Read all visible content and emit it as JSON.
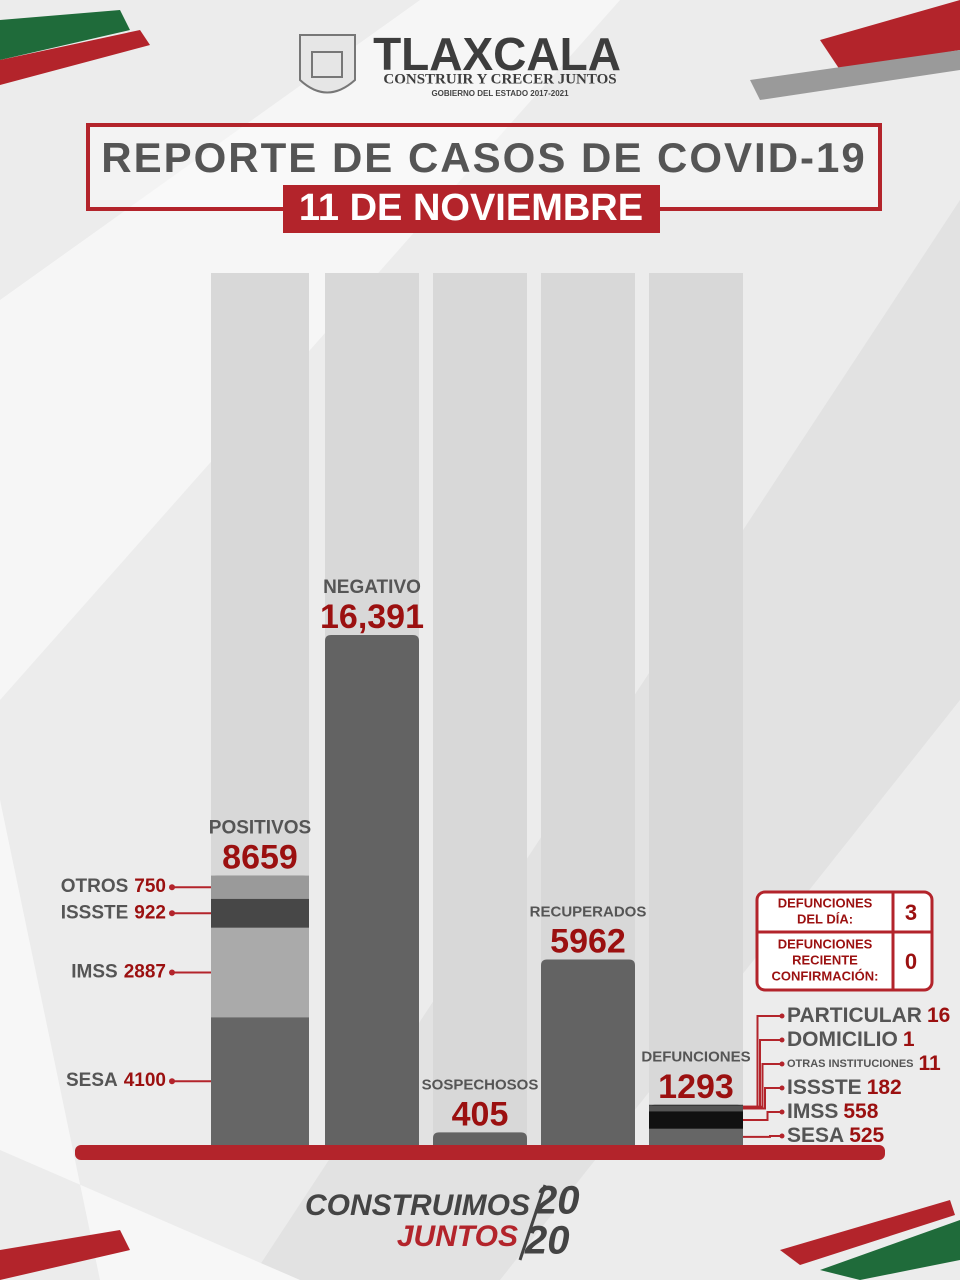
{
  "header": {
    "brand": "TLAXCALA",
    "slogan": "CONSTRUIR Y CRECER JUNTOS",
    "government": "GOBIERNO DEL ESTADO 2017-2021"
  },
  "chart_data": {
    "type": "bar",
    "title": "REPORTE DE CASOS DE COVID-19",
    "subtitle": "11 DE NOVIEMBRE",
    "categories": [
      "POSITIVOS",
      "NEGATIVO",
      "SOSPECHOSOS",
      "RECUPERADOS",
      "DEFUNCIONES"
    ],
    "values": [
      8659,
      16391,
      405,
      5962,
      1293
    ],
    "value_labels": [
      "8659",
      "16,391",
      "405",
      "5962",
      "1293"
    ],
    "color": "#636363",
    "track_color": "#d8d8d8",
    "segments": [
      [
        {
          "name": "SESA",
          "value": 4100,
          "color": "#666666"
        },
        {
          "name": "IMSS",
          "value": 2887,
          "color": "#aaaaaa"
        },
        {
          "name": "ISSSTE",
          "value": 922,
          "color": "#474747"
        },
        {
          "name": "OTROS",
          "value": 750,
          "color": "#9a9a9a"
        }
      ],
      null,
      null,
      null,
      [
        {
          "name": "SESA",
          "value": 525,
          "color": "#666666"
        },
        {
          "name": "IMSS",
          "value": 558,
          "color": "#111111"
        },
        {
          "name": "ISSSTE",
          "value": 182,
          "color": "#555555"
        },
        {
          "name": "OTRAS INSTITUCIONES",
          "value": 11,
          "color": "#333333"
        },
        {
          "name": "DOMICILIO",
          "value": 1,
          "color": "#333333"
        },
        {
          "name": "PARTICULAR",
          "value": 16,
          "color": "#333333"
        }
      ]
    ],
    "daily_box": [
      {
        "label": [
          "DEFUNCIONES",
          "DEL DÍA:"
        ],
        "value": 3
      },
      {
        "label": [
          "DEFUNCIONES",
          "RECIENTE",
          "CONFIRMACIÓN:"
        ],
        "value": 0
      }
    ]
  },
  "footer": {
    "line1": "CONSTRUIMOS",
    "line2": "JUNTOS",
    "year_top": "20",
    "year_bottom": "20"
  }
}
